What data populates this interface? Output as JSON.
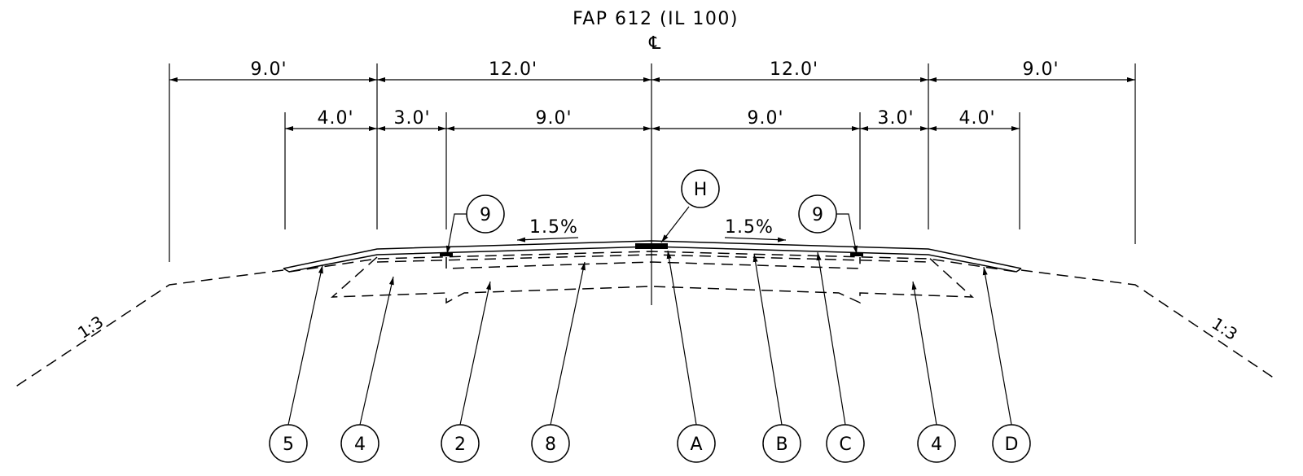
{
  "title": "FAP 612 (IL 100)",
  "centerline_symbol": "℄",
  "dimensions": {
    "row1": [
      "9.0'",
      "12.0'",
      "12.0'",
      "9.0'"
    ],
    "row2": [
      "4.0'",
      "3.0'",
      "9.0'",
      "9.0'",
      "3.0'",
      "4.0'"
    ]
  },
  "cross_slopes": [
    "1.5%",
    "1.5%"
  ],
  "side_slopes": [
    "1:3",
    "1:3"
  ],
  "callouts_top": [
    "9",
    "H",
    "9"
  ],
  "callouts_bottom": [
    "5",
    "4",
    "2",
    "8",
    "A",
    "B",
    "C",
    "4",
    "D"
  ]
}
